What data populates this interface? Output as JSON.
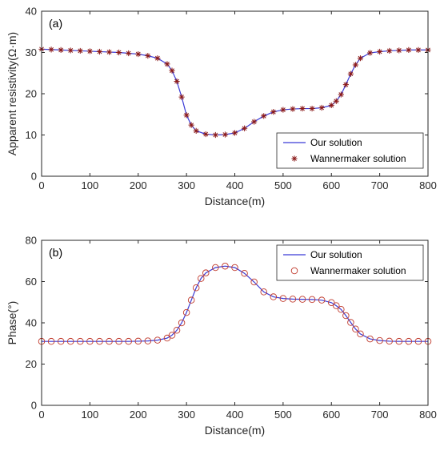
{
  "chart_data": [
    {
      "type": "line",
      "panel_tag": "(a)",
      "xlabel": "Distance(m)",
      "ylabel": "Apparent resistivity(Ω·m)",
      "xlim": [
        0,
        800
      ],
      "ylim": [
        0,
        40
      ],
      "xticks": [
        0,
        100,
        200,
        300,
        400,
        500,
        600,
        700,
        800
      ],
      "yticks": [
        0,
        10,
        20,
        30,
        40
      ],
      "legend_position": "bottom-right",
      "grid": false,
      "x": [
        0,
        20,
        40,
        60,
        80,
        100,
        120,
        140,
        160,
        180,
        200,
        220,
        240,
        260,
        270,
        280,
        290,
        300,
        310,
        320,
        340,
        360,
        380,
        400,
        420,
        440,
        460,
        480,
        500,
        520,
        540,
        560,
        580,
        600,
        610,
        620,
        630,
        640,
        650,
        660,
        680,
        700,
        720,
        740,
        760,
        780,
        800
      ],
      "series": [
        {
          "name": "Our solution",
          "marker": "line",
          "color": "#3b3bd6",
          "values": [
            30.8,
            30.7,
            30.6,
            30.5,
            30.4,
            30.3,
            30.2,
            30.1,
            30.0,
            29.8,
            29.6,
            29.2,
            28.6,
            27.2,
            25.6,
            23.0,
            19.2,
            14.8,
            12.4,
            11.0,
            10.2,
            10.0,
            10.1,
            10.5,
            11.6,
            13.2,
            14.6,
            15.6,
            16.1,
            16.3,
            16.4,
            16.4,
            16.6,
            17.2,
            18.2,
            19.8,
            22.2,
            24.8,
            27.0,
            28.6,
            29.9,
            30.2,
            30.4,
            30.5,
            30.6,
            30.6,
            30.6
          ]
        },
        {
          "name": "Wannermaker solution",
          "marker": "star",
          "color": "#8b1a1a",
          "values": [
            30.8,
            30.7,
            30.6,
            30.5,
            30.4,
            30.3,
            30.2,
            30.1,
            30.0,
            29.8,
            29.6,
            29.2,
            28.6,
            27.2,
            25.6,
            23.0,
            19.2,
            14.8,
            12.4,
            11.0,
            10.2,
            10.0,
            10.1,
            10.5,
            11.6,
            13.2,
            14.6,
            15.6,
            16.1,
            16.3,
            16.4,
            16.4,
            16.6,
            17.2,
            18.2,
            19.8,
            22.2,
            24.8,
            27.0,
            28.6,
            29.9,
            30.2,
            30.4,
            30.5,
            30.6,
            30.6,
            30.6
          ]
        }
      ]
    },
    {
      "type": "line",
      "panel_tag": "(b)",
      "xlabel": "Distance(m)",
      "ylabel": "Phase(°)",
      "xlim": [
        0,
        800
      ],
      "ylim": [
        0,
        80
      ],
      "xticks": [
        0,
        100,
        200,
        300,
        400,
        500,
        600,
        700,
        800
      ],
      "yticks": [
        0,
        20,
        40,
        60,
        80
      ],
      "legend_position": "top-right",
      "grid": false,
      "x": [
        0,
        20,
        40,
        60,
        80,
        100,
        120,
        140,
        160,
        180,
        200,
        220,
        240,
        260,
        270,
        280,
        290,
        300,
        310,
        320,
        330,
        340,
        360,
        380,
        400,
        420,
        440,
        460,
        480,
        500,
        520,
        540,
        560,
        580,
        600,
        610,
        620,
        630,
        640,
        650,
        660,
        680,
        700,
        720,
        740,
        760,
        780,
        800
      ],
      "series": [
        {
          "name": "Our solution",
          "marker": "line",
          "color": "#3b3bd6",
          "values": [
            31.0,
            31.0,
            31.0,
            31.0,
            31.0,
            31.0,
            31.0,
            31.0,
            31.0,
            31.0,
            31.1,
            31.2,
            31.6,
            32.6,
            34.0,
            36.4,
            40.0,
            45.0,
            51.0,
            57.0,
            61.5,
            64.2,
            66.8,
            67.5,
            66.8,
            64.0,
            59.8,
            55.0,
            52.6,
            51.8,
            51.5,
            51.4,
            51.3,
            51.0,
            49.8,
            48.3,
            46.5,
            43.5,
            40.2,
            37.0,
            34.6,
            32.2,
            31.4,
            31.1,
            31.0,
            31.0,
            31.0,
            31.0
          ]
        },
        {
          "name": "Wannermaker solution",
          "marker": "circle",
          "color": "#c0392b",
          "values": [
            31.0,
            31.0,
            31.0,
            31.0,
            31.0,
            31.0,
            31.0,
            31.0,
            31.0,
            31.0,
            31.1,
            31.2,
            31.6,
            32.6,
            34.0,
            36.4,
            40.0,
            45.0,
            51.0,
            57.0,
            61.5,
            64.2,
            66.8,
            67.5,
            66.8,
            64.0,
            59.8,
            55.0,
            52.6,
            51.8,
            51.5,
            51.4,
            51.3,
            51.0,
            49.8,
            48.3,
            46.5,
            43.5,
            40.2,
            37.0,
            34.6,
            32.2,
            31.4,
            31.1,
            31.0,
            31.0,
            31.0,
            31.0
          ]
        }
      ]
    }
  ]
}
